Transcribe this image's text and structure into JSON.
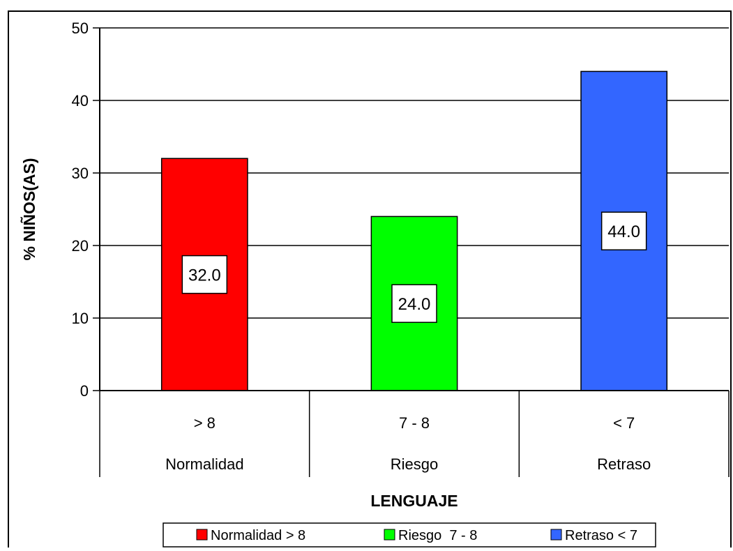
{
  "chart_data": {
    "type": "bar",
    "categories": [
      "> 8",
      "7 - 8",
      "< 7"
    ],
    "category_groups": [
      "Normalidad",
      "Riesgo",
      "Retraso"
    ],
    "values": [
      32.0,
      24.0,
      44.0
    ],
    "value_labels": [
      "32.0",
      "24.0",
      "44.0"
    ],
    "colors": [
      "#ff0000",
      "#00ff00",
      "#3366ff"
    ],
    "title": "",
    "xlabel": "LENGUAJE",
    "ylabel": "% NIÑOS(AS)",
    "ylim": [
      0,
      50
    ],
    "yticks": [
      "0",
      "10",
      "20",
      "30",
      "40",
      "50"
    ],
    "grid": true,
    "legend": {
      "placement": "bottom",
      "entries": [
        "Normalidad > 8",
        "Riesgo  7 - 8",
        "Retraso < 7"
      ]
    }
  }
}
